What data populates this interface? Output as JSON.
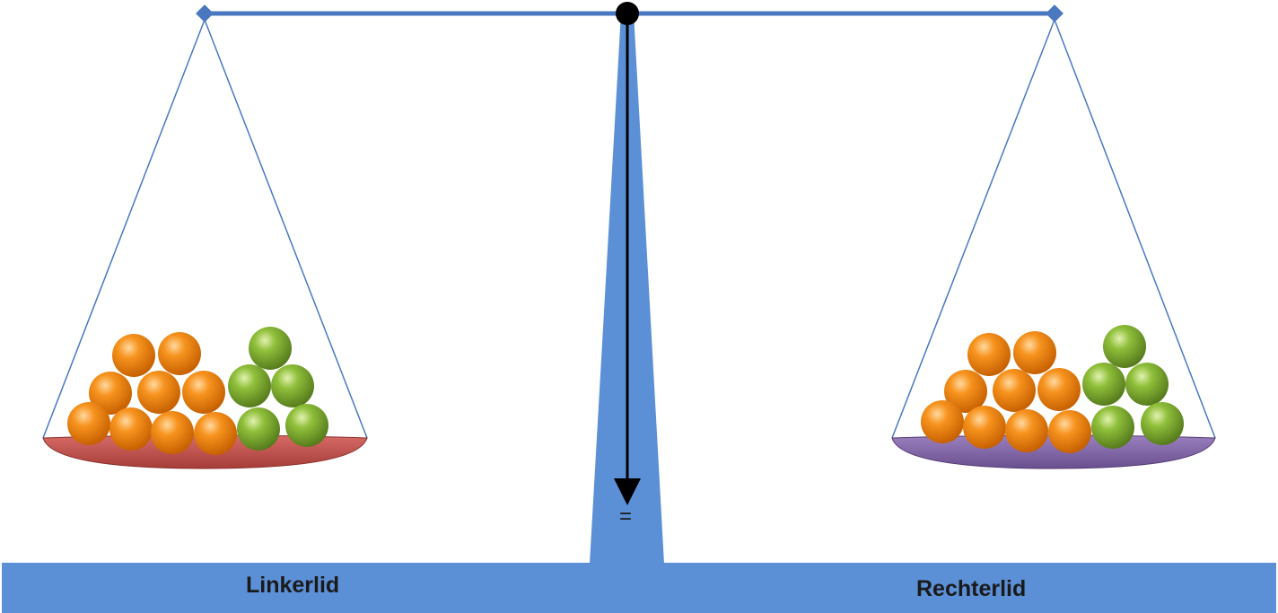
{
  "labels": {
    "left": "Linkerlid",
    "right": "Rechterlid",
    "pointer": "="
  },
  "colors": {
    "structure": "#5b8fd6",
    "line": "#4a78c0",
    "left_pan": "#c0504d",
    "right_pan": "#8064a2",
    "orange_ball": "#f7931e",
    "green_ball": "#8fbf3a"
  },
  "pans": {
    "left": {
      "orange_balls": 9,
      "green_balls": 5
    },
    "right": {
      "orange_balls": 9,
      "green_balls": 5
    }
  }
}
